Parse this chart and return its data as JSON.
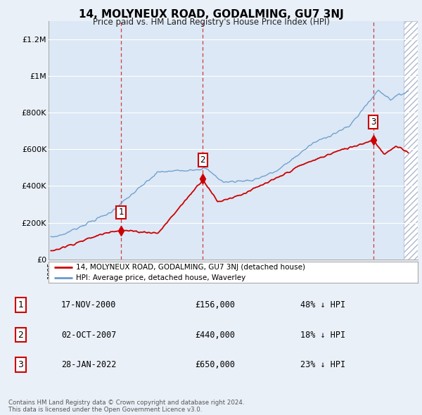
{
  "title": "14, MOLYNEUX ROAD, GODALMING, GU7 3NJ",
  "subtitle": "Price paid vs. HM Land Registry's House Price Index (HPI)",
  "bg_color": "#eaf0f8",
  "plot_bg_color": "#dce8f5",
  "legend_entries": [
    "14, MOLYNEUX ROAD, GODALMING, GU7 3NJ (detached house)",
    "HPI: Average price, detached house, Waverley"
  ],
  "table_rows": [
    [
      "1",
      "17-NOV-2000",
      "£156,000",
      "48% ↓ HPI"
    ],
    [
      "2",
      "02-OCT-2007",
      "£440,000",
      "18% ↓ HPI"
    ],
    [
      "3",
      "28-JAN-2022",
      "£650,000",
      "23% ↓ HPI"
    ]
  ],
  "footer": "Contains HM Land Registry data © Crown copyright and database right 2024.\nThis data is licensed under the Open Government Licence v3.0.",
  "red_color": "#cc0000",
  "blue_color": "#6699cc",
  "sale_year_nums": [
    2000.88,
    2007.75,
    2022.07
  ],
  "sale_prices": [
    156000,
    440000,
    650000
  ],
  "ylim": [
    0,
    1300000
  ],
  "yticks": [
    0,
    200000,
    400000,
    600000,
    800000,
    1000000,
    1200000
  ],
  "ytick_labels": [
    "£0",
    "£200K",
    "£400K",
    "£600K",
    "£800K",
    "£1M",
    "£1.2M"
  ],
  "xstart": 1995,
  "xend": 2025
}
